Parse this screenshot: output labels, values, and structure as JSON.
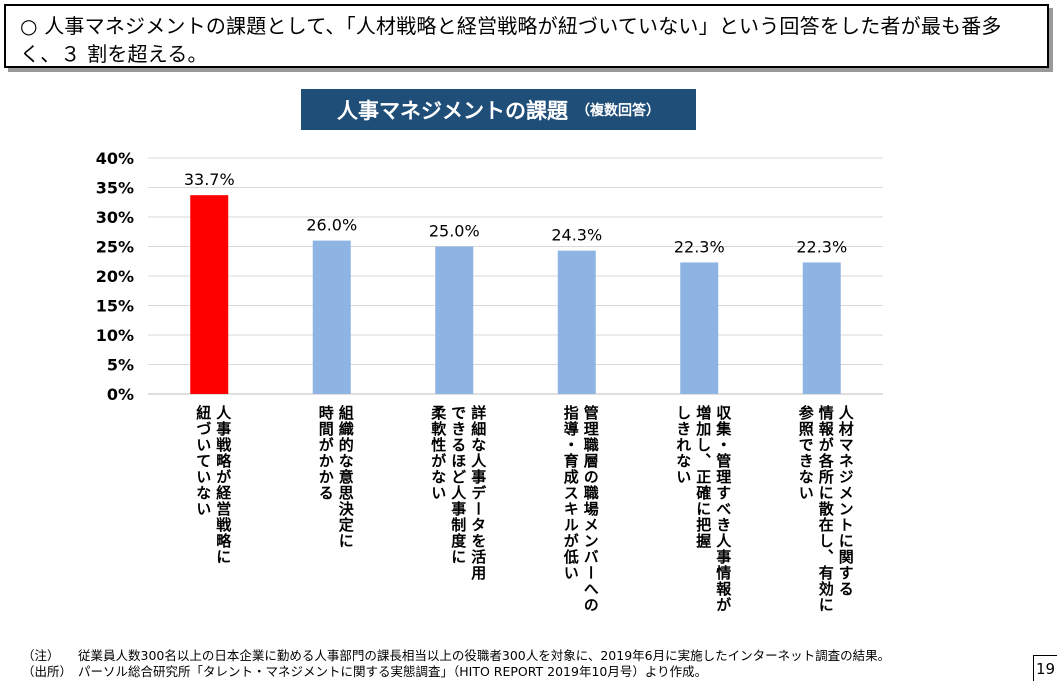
{
  "headline": {
    "bullet": "○",
    "text": "人事マネジメントの課題として、「人材戦略と経営戦略が紐づいていない」という回答をした者が最も番多く、３ 割を超える。"
  },
  "chart_title": {
    "main": "人事マネジメントの課題",
    "sub": "（複数回答）",
    "background": "#1f4e79"
  },
  "chart_data": {
    "type": "bar",
    "title": "人事マネジメントの課題（複数回答）",
    "categories": [
      "人事戦略が経営戦略に\n紐づいていない",
      "組織的な意思決定に\n時間がかかる",
      "詳細な人事データを活用\nできるほど人事制度に\n柔軟性がない",
      "管理職層の職場メンバーへの\n指導・育成スキルが低い",
      "収集・管理すべき人事情報が\n増加し、正確に把握\nしきれない",
      "人材マネジメントに関する\n情報が各所に散在し、有効に\n参照できない"
    ],
    "values": [
      33.7,
      26.0,
      25.0,
      24.3,
      22.3,
      22.3
    ],
    "value_labels": [
      "33.7%",
      "26.0%",
      "25.0%",
      "24.3%",
      "22.3%",
      "22.3%"
    ],
    "bar_colors": [
      "#ff0000",
      "#8eb4e3",
      "#8eb4e3",
      "#8eb4e3",
      "#8eb4e3",
      "#8eb4e3"
    ],
    "ylim": [
      0,
      40
    ],
    "yticks": [
      0,
      5,
      10,
      15,
      20,
      25,
      30,
      35,
      40
    ],
    "ytick_labels": [
      "0%",
      "5%",
      "10%",
      "15%",
      "20%",
      "25%",
      "30%",
      "35%",
      "40%"
    ],
    "grid": true,
    "xlabel": "",
    "ylabel": ""
  },
  "notes": [
    {
      "tag": "（注）",
      "text": "従業員人数300名以上の日本企業に勤める人事部門の課長相当以上の役職者300人を対象に、2019年6月に実施したインターネット調査の結果。"
    },
    {
      "tag": "（出所）",
      "text": "パーソル総合研究所「タレント・マネジメントに関する実態調査」（HITO REPORT 2019年10月号）より作成。"
    }
  ],
  "page_number": "19"
}
